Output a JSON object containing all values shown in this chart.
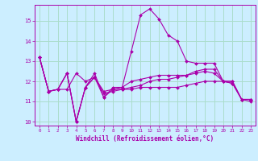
{
  "xlabel": "Windchill (Refroidissement éolien,°C)",
  "bg_color": "#cceeff",
  "grid_color": "#aaddcc",
  "line_color": "#aa00aa",
  "hours": [
    0,
    1,
    2,
    3,
    4,
    5,
    6,
    7,
    8,
    9,
    10,
    11,
    12,
    13,
    14,
    15,
    16,
    17,
    18,
    19,
    20,
    21,
    22,
    23
  ],
  "line1": [
    13.2,
    11.5,
    11.6,
    12.4,
    10.0,
    11.7,
    12.2,
    11.5,
    11.6,
    11.6,
    11.6,
    11.7,
    11.7,
    11.7,
    11.7,
    11.7,
    11.8,
    11.9,
    12.0,
    12.0,
    12.0,
    11.9,
    11.1,
    11.1
  ],
  "line2": [
    13.2,
    11.5,
    11.6,
    11.6,
    12.4,
    12.0,
    12.2,
    11.4,
    11.5,
    11.6,
    11.7,
    11.8,
    12.0,
    12.1,
    12.1,
    12.2,
    12.3,
    12.4,
    12.5,
    12.4,
    12.0,
    12.0,
    11.1,
    11.1
  ],
  "line3": [
    13.2,
    11.5,
    11.6,
    12.4,
    10.0,
    11.7,
    12.2,
    11.2,
    11.6,
    11.7,
    13.5,
    15.3,
    15.6,
    15.1,
    14.3,
    14.0,
    13.0,
    12.9,
    12.9,
    12.9,
    12.0,
    12.0,
    11.1,
    11.1
  ],
  "line4": [
    13.2,
    11.5,
    11.6,
    12.4,
    10.0,
    11.7,
    12.4,
    11.2,
    11.7,
    11.7,
    12.0,
    12.1,
    12.2,
    12.3,
    12.3,
    12.3,
    12.3,
    12.5,
    12.6,
    12.6,
    12.0,
    11.9,
    11.1,
    11.0
  ],
  "ylim": [
    9.8,
    15.8
  ],
  "yticks": [
    10,
    11,
    12,
    13,
    14,
    15
  ],
  "xticks": [
    0,
    1,
    2,
    3,
    4,
    5,
    6,
    7,
    8,
    9,
    10,
    11,
    12,
    13,
    14,
    15,
    16,
    17,
    18,
    19,
    20,
    21,
    22,
    23
  ]
}
